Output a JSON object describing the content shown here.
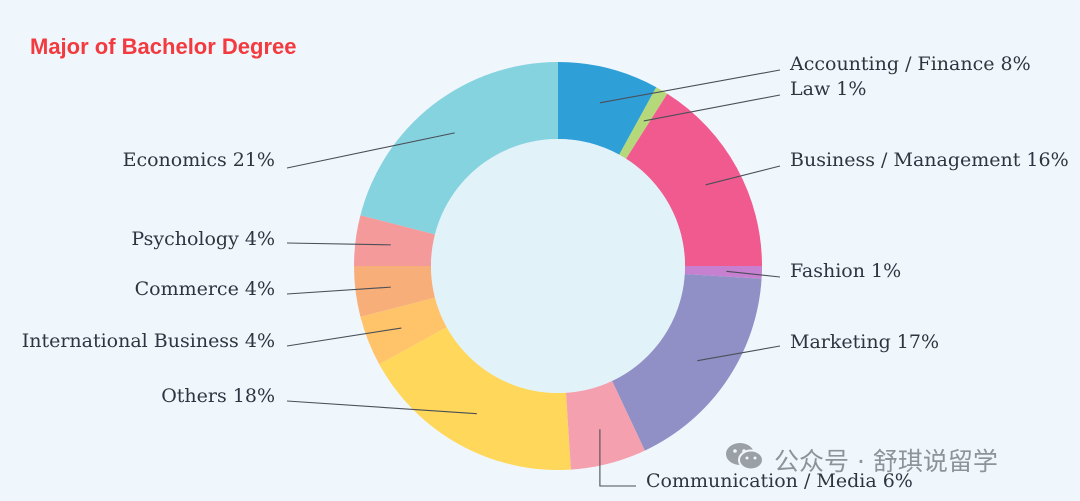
{
  "chart_data": {
    "type": "pie",
    "title": "Major of Bachelor Degree",
    "slices": [
      {
        "label": "Accounting / Finance 8%",
        "value": 8,
        "color": "#2f9fd8"
      },
      {
        "label": "Law 1%",
        "value": 1,
        "color": "#b5d97a"
      },
      {
        "label": "Business / Management 16%",
        "value": 16,
        "color": "#f05a8e"
      },
      {
        "label": "Fashion 1%",
        "value": 1,
        "color": "#c77fd0"
      },
      {
        "label": "Marketing 17%",
        "value": 17,
        "color": "#9190c6"
      },
      {
        "label": "Communication / Media 6%",
        "value": 6,
        "color": "#f5a0ae"
      },
      {
        "label": "Others 18%",
        "value": 18,
        "color": "#ffd75a"
      },
      {
        "label": "International Business 4%",
        "value": 4,
        "color": "#ffc46a"
      },
      {
        "label": "Commerce 4%",
        "value": 4,
        "color": "#f8ae78"
      },
      {
        "label": "Psychology 4%",
        "value": 4,
        "color": "#f59a9a"
      },
      {
        "label": "Economics 21%",
        "value": 21,
        "color": "#86d3e0"
      }
    ],
    "hole_color": "#e1f2f9"
  },
  "watermark": {
    "text": "公众号 · 舒琪说留学",
    "icon": "wechat-icon"
  }
}
